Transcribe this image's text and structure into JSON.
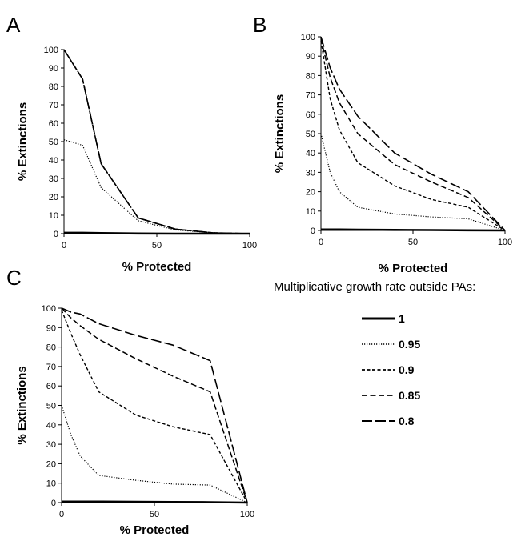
{
  "legend": {
    "title": "Multiplicative growth rate outside PAs:",
    "entries": [
      {
        "label": "1",
        "style": "solid"
      },
      {
        "label": "0.95",
        "style": "dotted"
      },
      {
        "label": "0.9",
        "style": "shortdash"
      },
      {
        "label": "0.85",
        "style": "dash"
      },
      {
        "label": "0.8",
        "style": "longdash"
      }
    ]
  },
  "line_color": "#000000",
  "chart_data": [
    {
      "panel": "A",
      "type": "line",
      "xlabel": "% Protected",
      "ylabel": "% Extinctions",
      "xlim": [
        0,
        100
      ],
      "ylim": [
        0,
        100
      ],
      "xticks": [
        0,
        50,
        100
      ],
      "yticks": [
        0,
        10,
        20,
        30,
        40,
        50,
        60,
        70,
        80,
        90,
        100
      ],
      "grid": false,
      "x": [
        0,
        10,
        20,
        40,
        60,
        80,
        100
      ],
      "series": [
        {
          "name": "1",
          "values": [
            0.5,
            0.5,
            0.3,
            0.1,
            0,
            0,
            0
          ]
        },
        {
          "name": "0.95",
          "values": [
            51,
            48,
            25,
            7,
            2,
            0.5,
            0
          ]
        },
        {
          "name": "0.9",
          "values": [
            100,
            84,
            38,
            8.5,
            2.5,
            0.5,
            0
          ]
        },
        {
          "name": "0.85",
          "values": [
            100,
            84,
            38,
            8.5,
            2.5,
            0.5,
            0
          ]
        },
        {
          "name": "0.8",
          "values": [
            100,
            84,
            38,
            8.5,
            2.5,
            0.5,
            0
          ]
        }
      ]
    },
    {
      "panel": "B",
      "type": "line",
      "xlabel": "% Protected",
      "ylabel": "% Extinctions",
      "xlim": [
        0,
        100
      ],
      "ylim": [
        0,
        100
      ],
      "xticks": [
        0,
        50,
        100
      ],
      "yticks": [
        0,
        10,
        20,
        30,
        40,
        50,
        60,
        70,
        80,
        90,
        100
      ],
      "grid": false,
      "x": [
        0,
        5,
        10,
        20,
        40,
        60,
        80,
        100
      ],
      "series": [
        {
          "name": "1",
          "values": [
            0.5,
            0.5,
            0.5,
            0.4,
            0.3,
            0.2,
            0.1,
            0
          ]
        },
        {
          "name": "0.95",
          "values": [
            50,
            30,
            20,
            12,
            8.5,
            7,
            6,
            0
          ]
        },
        {
          "name": "0.9",
          "values": [
            98,
            68,
            52,
            35,
            23,
            16,
            12,
            0
          ]
        },
        {
          "name": "0.85",
          "values": [
            99,
            79,
            66,
            50,
            34,
            25,
            17,
            0
          ]
        },
        {
          "name": "0.8",
          "values": [
            100,
            84,
            73,
            59,
            40,
            29,
            20,
            0
          ]
        }
      ]
    },
    {
      "panel": "C",
      "type": "line",
      "xlabel": "% Protected",
      "ylabel": "% Extinctions",
      "xlim": [
        0,
        100
      ],
      "ylim": [
        0,
        100
      ],
      "xticks": [
        0,
        50,
        100
      ],
      "yticks": [
        0,
        10,
        20,
        30,
        40,
        50,
        60,
        70,
        80,
        90,
        100
      ],
      "grid": false,
      "x": [
        0,
        5,
        10,
        20,
        40,
        60,
        80,
        100
      ],
      "series": [
        {
          "name": "1",
          "values": [
            0.5,
            0.5,
            0.5,
            0.5,
            0.4,
            0.3,
            0.2,
            0
          ]
        },
        {
          "name": "0.95",
          "values": [
            50,
            35,
            24,
            14,
            11.5,
            9.5,
            9,
            0
          ]
        },
        {
          "name": "0.9",
          "values": [
            99,
            87,
            76,
            57,
            45,
            39,
            35,
            0
          ]
        },
        {
          "name": "0.85",
          "values": [
            100,
            95,
            91,
            84,
            74,
            65,
            57,
            0
          ]
        },
        {
          "name": "0.8",
          "values": [
            100,
            98,
            97,
            92,
            86,
            81,
            73,
            0
          ]
        }
      ]
    }
  ],
  "panel_labels": [
    "A",
    "B",
    "C"
  ]
}
